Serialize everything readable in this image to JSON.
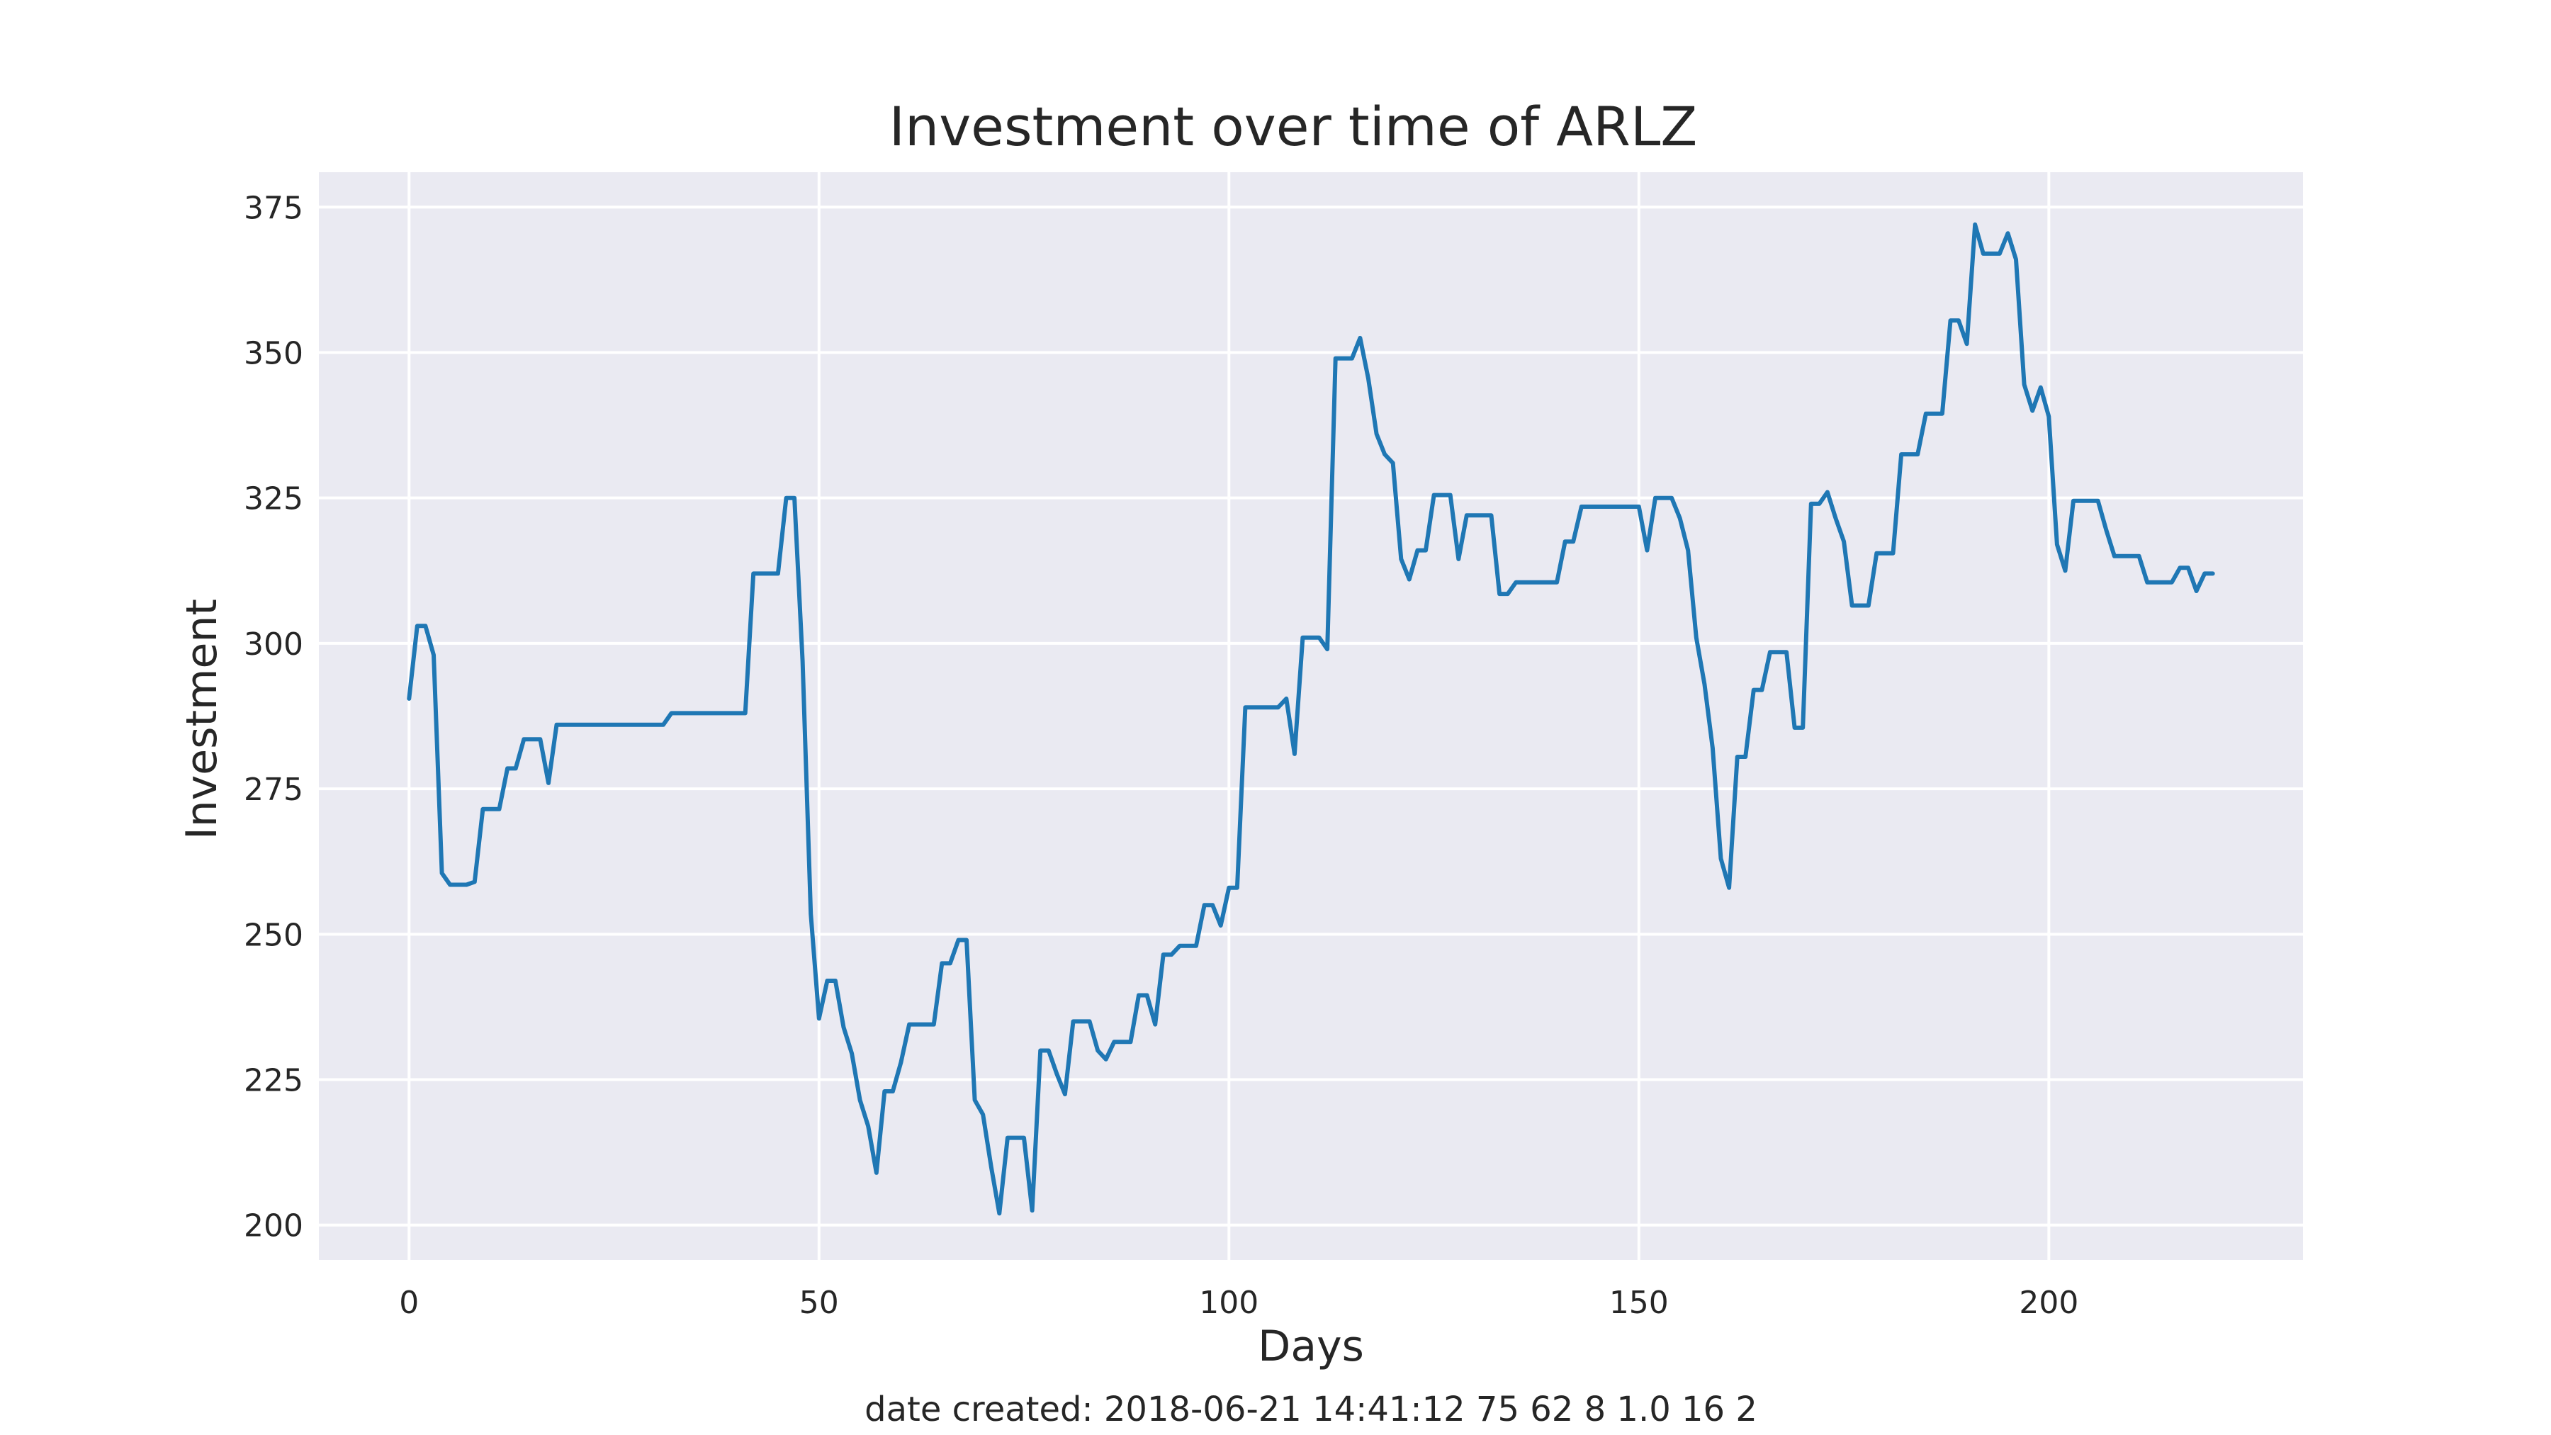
{
  "chart_data": {
    "type": "line",
    "title": "Investment over time of ARLZ",
    "xlabel": "Days",
    "ylabel": "Investment",
    "xlim": [
      -11,
      231
    ],
    "ylim": [
      194,
      381
    ],
    "xticks": [
      0,
      50,
      100,
      150,
      200
    ],
    "yticks": [
      200,
      225,
      250,
      275,
      300,
      325,
      350,
      375
    ],
    "grid": true,
    "legend": "none",
    "colors": {
      "line": "#1f77b4",
      "plot_bg": "#eaeaf2",
      "grid": "#ffffff"
    },
    "series": [
      {
        "points": [
          [
            0,
            290.5
          ],
          [
            1,
            303
          ],
          [
            2,
            303
          ],
          [
            3,
            298
          ],
          [
            4,
            260.5
          ],
          [
            5,
            258.5
          ],
          [
            6,
            258.5
          ],
          [
            7,
            258.5
          ],
          [
            8,
            259
          ],
          [
            9,
            271.5
          ],
          [
            10,
            271.5
          ],
          [
            11,
            271.5
          ],
          [
            12,
            278.5
          ],
          [
            13,
            278.5
          ],
          [
            14,
            283.5
          ],
          [
            15,
            283.5
          ],
          [
            16,
            283.5
          ],
          [
            17,
            276
          ],
          [
            18,
            286
          ],
          [
            20,
            286
          ],
          [
            25,
            286
          ],
          [
            31,
            286
          ],
          [
            32,
            288
          ],
          [
            35,
            288
          ],
          [
            40,
            288
          ],
          [
            41,
            288
          ],
          [
            42,
            312
          ],
          [
            43,
            312
          ],
          [
            44,
            312
          ],
          [
            45,
            312
          ],
          [
            46,
            325
          ],
          [
            47,
            325
          ],
          [
            48,
            297
          ],
          [
            49,
            253.5
          ],
          [
            50,
            235.5
          ],
          [
            51,
            242
          ],
          [
            52,
            242
          ],
          [
            53,
            234
          ],
          [
            54,
            229.5
          ],
          [
            55,
            221.5
          ],
          [
            56,
            217
          ],
          [
            57,
            209
          ],
          [
            58,
            223
          ],
          [
            59,
            223
          ],
          [
            60,
            228
          ],
          [
            61,
            234.5
          ],
          [
            62,
            234.5
          ],
          [
            63,
            234.5
          ],
          [
            64,
            234.5
          ],
          [
            65,
            245
          ],
          [
            66,
            245
          ],
          [
            67,
            249
          ],
          [
            68,
            249
          ],
          [
            69,
            221.5
          ],
          [
            70,
            219
          ],
          [
            71,
            210
          ],
          [
            72,
            202
          ],
          [
            73,
            215
          ],
          [
            74,
            215
          ],
          [
            75,
            215
          ],
          [
            76,
            202.5
          ],
          [
            77,
            230
          ],
          [
            78,
            230
          ],
          [
            79,
            226
          ],
          [
            80,
            222.5
          ],
          [
            81,
            235
          ],
          [
            82,
            235
          ],
          [
            83,
            235
          ],
          [
            84,
            230
          ],
          [
            85,
            228.5
          ],
          [
            86,
            231.5
          ],
          [
            87,
            231.5
          ],
          [
            88,
            231.5
          ],
          [
            89,
            239.5
          ],
          [
            90,
            239.5
          ],
          [
            91,
            234.5
          ],
          [
            92,
            246.5
          ],
          [
            93,
            246.5
          ],
          [
            94,
            248
          ],
          [
            95,
            248
          ],
          [
            96,
            248
          ],
          [
            97,
            255
          ],
          [
            98,
            255
          ],
          [
            99,
            251.5
          ],
          [
            100,
            258
          ],
          [
            101,
            258
          ],
          [
            102,
            289
          ],
          [
            103,
            289
          ],
          [
            104,
            289
          ],
          [
            105,
            289
          ],
          [
            106,
            289
          ],
          [
            107,
            290.5
          ],
          [
            108,
            281
          ],
          [
            109,
            301
          ],
          [
            110,
            301
          ],
          [
            111,
            301
          ],
          [
            112,
            299
          ],
          [
            113,
            349
          ],
          [
            114,
            349
          ],
          [
            115,
            349
          ],
          [
            116,
            352.5
          ],
          [
            117,
            345.5
          ],
          [
            118,
            336
          ],
          [
            119,
            332.5
          ],
          [
            120,
            331
          ],
          [
            121,
            314.5
          ],
          [
            122,
            311
          ],
          [
            123,
            316
          ],
          [
            124,
            316
          ],
          [
            125,
            325.5
          ],
          [
            126,
            325.5
          ],
          [
            127,
            325.5
          ],
          [
            128,
            314.5
          ],
          [
            129,
            322
          ],
          [
            130,
            322
          ],
          [
            131,
            322
          ],
          [
            132,
            322
          ],
          [
            133,
            308.5
          ],
          [
            134,
            308.5
          ],
          [
            135,
            310.5
          ],
          [
            136,
            310.5
          ],
          [
            138,
            310.5
          ],
          [
            140,
            310.5
          ],
          [
            141,
            317.5
          ],
          [
            142,
            317.5
          ],
          [
            143,
            323.5
          ],
          [
            145,
            323.5
          ],
          [
            148,
            323.5
          ],
          [
            150,
            323.5
          ],
          [
            151,
            316
          ],
          [
            152,
            325
          ],
          [
            153,
            325
          ],
          [
            154,
            325
          ],
          [
            155,
            321.5
          ],
          [
            156,
            316
          ],
          [
            157,
            301
          ],
          [
            158,
            293
          ],
          [
            159,
            282
          ],
          [
            160,
            263
          ],
          [
            161,
            258
          ],
          [
            162,
            280.5
          ],
          [
            163,
            280.5
          ],
          [
            164,
            292
          ],
          [
            165,
            292
          ],
          [
            166,
            298.5
          ],
          [
            167,
            298.5
          ],
          [
            168,
            298.5
          ],
          [
            169,
            285.5
          ],
          [
            170,
            285.5
          ],
          [
            171,
            324
          ],
          [
            172,
            324
          ],
          [
            173,
            326
          ],
          [
            174,
            321.5
          ],
          [
            175,
            317.5
          ],
          [
            176,
            306.5
          ],
          [
            177,
            306.5
          ],
          [
            178,
            306.5
          ],
          [
            179,
            315.5
          ],
          [
            180,
            315.5
          ],
          [
            181,
            315.5
          ],
          [
            182,
            332.5
          ],
          [
            183,
            332.5
          ],
          [
            184,
            332.5
          ],
          [
            185,
            339.5
          ],
          [
            186,
            339.5
          ],
          [
            187,
            339.5
          ],
          [
            188,
            355.5
          ],
          [
            189,
            355.5
          ],
          [
            190,
            351.5
          ],
          [
            191,
            372
          ],
          [
            192,
            367
          ],
          [
            193,
            367
          ],
          [
            194,
            367
          ],
          [
            195,
            370.5
          ],
          [
            196,
            366
          ],
          [
            197,
            344.5
          ],
          [
            198,
            340
          ],
          [
            199,
            344
          ],
          [
            200,
            339
          ],
          [
            201,
            317
          ],
          [
            202,
            312.5
          ],
          [
            203,
            324.5
          ],
          [
            204,
            324.5
          ],
          [
            205,
            324.5
          ],
          [
            206,
            324.5
          ],
          [
            207,
            319.5
          ],
          [
            208,
            315
          ],
          [
            209,
            315
          ],
          [
            210,
            315
          ],
          [
            211,
            315
          ],
          [
            212,
            310.5
          ],
          [
            213,
            310.5
          ],
          [
            214,
            310.5
          ],
          [
            215,
            310.5
          ],
          [
            216,
            313
          ],
          [
            217,
            313
          ],
          [
            218,
            309
          ],
          [
            219,
            312
          ],
          [
            220,
            312
          ]
        ]
      }
    ]
  },
  "footer": {
    "text": "date created: 2018-06-21 14:41:12 75 62 8 1.0 16 2"
  }
}
